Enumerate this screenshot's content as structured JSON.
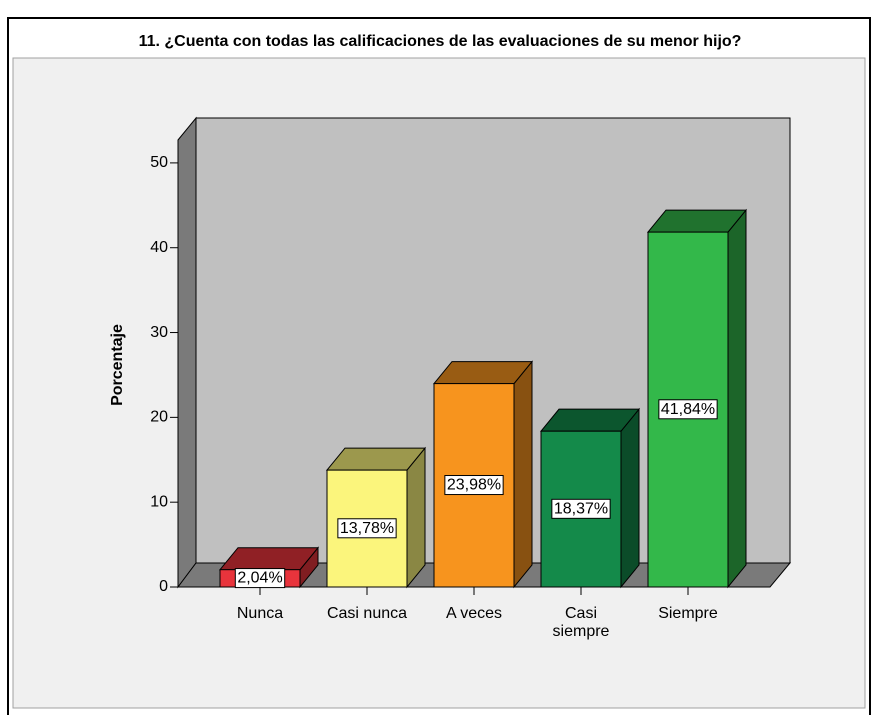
{
  "chart_data": {
    "type": "bar3d",
    "title": "11. ¿Cuenta con todas las calificaciones de las evaluaciones de su menor hijo?",
    "y_label": "Porcentaje",
    "categories": [
      "Nunca",
      "Casi nunca",
      "A veces",
      "Casi\nsiempre",
      "Siempre"
    ],
    "values": [
      2.04,
      13.78,
      23.98,
      18.37,
      41.84
    ],
    "value_labels": [
      "2,04%",
      "13,78%",
      "23,98%",
      "18,37%",
      "41,84%"
    ],
    "colors": [
      "#e8343c",
      "#fbf57c",
      "#f7941e",
      "#148a4a",
      "#33b84a"
    ],
    "ylim": [
      0,
      52.7
    ],
    "yticks": [
      0,
      10,
      20,
      30,
      40,
      50
    ],
    "grid": false
  }
}
